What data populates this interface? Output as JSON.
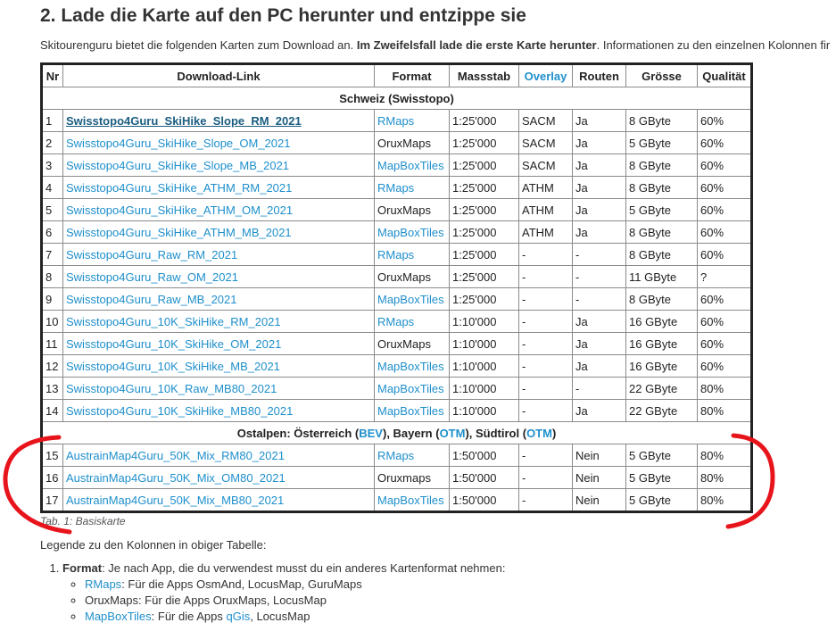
{
  "heading": "2. Lade die Karte auf den PC herunter und entzippe sie",
  "intro": {
    "text": "Skitourenguru bietet die folgenden Karten zum Download an. ",
    "bold": "Im Zweifelsfall lade die erste Karte herunter",
    "rest": ". Informationen zu den einzelnen Kolonnen fir"
  },
  "table": {
    "header": [
      "Nr",
      "Download-Link",
      "Format",
      "Massstab",
      {
        "text": "Overlay",
        "link": true
      },
      "Routen",
      "Grösse",
      "Qualität"
    ],
    "groups": [
      {
        "title": [
          "Schweiz (Swisstopo)"
        ],
        "rows": [
          [
            "1",
            "Swisstopo4Guru_SkiHike_Slope_RM_2021",
            {
              "text": "RMaps",
              "link": true
            },
            "1:25'000",
            "SACM",
            "Ja",
            "8 GByte",
            "60%"
          ],
          [
            "2",
            "Swisstopo4Guru_SkiHike_Slope_OM_2021",
            "OruxMaps",
            "1:25'000",
            "SACM",
            "Ja",
            "5 GByte",
            "60%"
          ],
          [
            "3",
            "Swisstopo4Guru_SkiHike_Slope_MB_2021",
            {
              "text": "MapBoxTiles",
              "link": true
            },
            "1:25'000",
            "SACM",
            "Ja",
            "8 GByte",
            "60%"
          ],
          [
            "4",
            "Swisstopo4Guru_SkiHike_ATHM_RM_2021",
            {
              "text": "RMaps",
              "link": true
            },
            "1:25'000",
            "ATHM",
            "Ja",
            "8 GByte",
            "60%"
          ],
          [
            "5",
            "Swisstopo4Guru_SkiHike_ATHM_OM_2021",
            "OruxMaps",
            "1:25'000",
            "ATHM",
            "Ja",
            "5 GByte",
            "60%"
          ],
          [
            "6",
            "Swisstopo4Guru_SkiHike_ATHM_MB_2021",
            {
              "text": "MapBoxTiles",
              "link": true
            },
            "1:25'000",
            "ATHM",
            "Ja",
            "8 GByte",
            "60%"
          ],
          [
            "7",
            "Swisstopo4Guru_Raw_RM_2021",
            {
              "text": "RMaps",
              "link": true
            },
            "1:25'000",
            "-",
            "-",
            "8 GByte",
            "60%"
          ],
          [
            "8",
            "Swisstopo4Guru_Raw_OM_2021",
            "OruxMaps",
            "1:25'000",
            "-",
            "-",
            "11 GByte",
            "?"
          ],
          [
            "9",
            "Swisstopo4Guru_Raw_MB_2021",
            {
              "text": "MapBoxTiles",
              "link": true
            },
            "1:25'000",
            "-",
            "-",
            "8 GByte",
            "60%"
          ],
          [
            "10",
            "Swisstopo4Guru_10K_SkiHike_RM_2021",
            {
              "text": "RMaps",
              "link": true
            },
            "1:10'000",
            "-",
            "Ja",
            "16 GByte",
            "60%"
          ],
          [
            "11",
            "Swisstopo4Guru_10K_SkiHike_OM_2021",
            "OruxMaps",
            "1:10'000",
            "-",
            "Ja",
            "16 GByte",
            "60%"
          ],
          [
            "12",
            "Swisstopo4Guru_10K_SkiHike_MB_2021",
            {
              "text": "MapBoxTiles",
              "link": true
            },
            "1:10'000",
            "-",
            "Ja",
            "16 GByte",
            "60%"
          ],
          [
            "13",
            "Swisstopo4Guru_10K_Raw_MB80_2021",
            {
              "text": "MapBoxTiles",
              "link": true
            },
            "1:10'000",
            "-",
            "-",
            "22 GByte",
            "80%"
          ],
          [
            "14",
            "Swisstopo4Guru_10K_SkiHike_MB80_2021",
            {
              "text": "MapBoxTiles",
              "link": true
            },
            "1:10'000",
            "-",
            "Ja",
            "22 GByte",
            "80%"
          ]
        ]
      },
      {
        "title": [
          "Ostalpen: Österreich (",
          {
            "text": "BEV",
            "link": true
          },
          "), Bayern (",
          {
            "text": "OTM",
            "link": true
          },
          "), Südtirol (",
          {
            "text": "OTM",
            "link": true
          },
          ")"
        ],
        "rows": [
          [
            "15",
            "AustrainMap4Guru_50K_Mix_RM80_2021",
            {
              "text": "RMaps",
              "link": true
            },
            "1:50'000",
            "-",
            "Nein",
            "5 GByte",
            "80%"
          ],
          [
            "16",
            "AustrainMap4Guru_50K_Mix_OM80_2021",
            "Oruxmaps",
            "1:50'000",
            "-",
            "Nein",
            "5 GByte",
            "80%"
          ],
          [
            "17",
            "AustrainMap4Guru_50K_Mix_MB80_2021",
            {
              "text": "MapBoxTiles",
              "link": true
            },
            "1:50'000",
            "-",
            "Nein",
            "5 GByte",
            "80%"
          ]
        ]
      }
    ],
    "caption": "Tab. 1: Basiskarte"
  },
  "legend": {
    "intro": "Legende zu den Kolonnen in obiger Tabelle:",
    "items": [
      {
        "term": "Format",
        "text": ": Je nach App, die du verwendest musst du ein anderes Kartenformat nehmen:",
        "subitems": [
          [
            {
              "text": "RMaps",
              "link": true
            },
            ": Für die Apps OsmAnd, LocusMap, GuruMaps"
          ],
          [
            "OruxMaps: Für die Apps OruxMaps, LocusMap"
          ],
          [
            {
              "text": "MapBoxTiles",
              "link": true
            },
            ": Für die Apps ",
            {
              "text": "qGis",
              "link": true
            },
            ", LocusMap"
          ]
        ]
      }
    ]
  }
}
